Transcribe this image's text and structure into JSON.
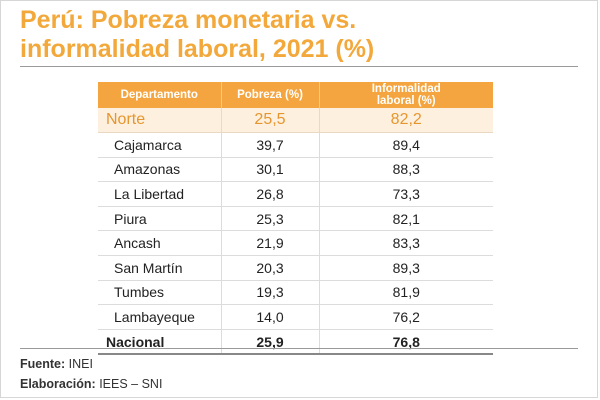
{
  "title_line1": "Perú: Pobreza monetaria vs.",
  "title_line2": "informalidad laboral, 2021 (%)",
  "chart_data": {
    "type": "table",
    "title": "Perú: Pobreza monetaria vs. informalidad laboral, 2021 (%)",
    "columns": [
      "Departamento",
      "Pobreza (%)",
      "Informalidad laboral (%)"
    ],
    "header": {
      "departamento": "Departamento",
      "pobreza": "Pobreza (%)",
      "informalidad_line1": "Informalidad",
      "informalidad_line2": "laboral (%)"
    },
    "region": {
      "name": "Norte",
      "pobreza": "25,5",
      "informalidad": "82,2"
    },
    "rows": [
      {
        "name": "Cajamarca",
        "pobreza": "39,7",
        "informalidad": "89,4"
      },
      {
        "name": "Amazonas",
        "pobreza": "30,1",
        "informalidad": "88,3"
      },
      {
        "name": "La Libertad",
        "pobreza": "26,8",
        "informalidad": "73,3"
      },
      {
        "name": "Piura",
        "pobreza": "25,3",
        "informalidad": "82,1"
      },
      {
        "name": "Ancash",
        "pobreza": "21,9",
        "informalidad": "83,3"
      },
      {
        "name": "San Martín",
        "pobreza": "20,3",
        "informalidad": "89,3"
      },
      {
        "name": "Tumbes",
        "pobreza": "19,3",
        "informalidad": "81,9"
      },
      {
        "name": "Lambayeque",
        "pobreza": "14,0",
        "informalidad": "76,2"
      }
    ],
    "total": {
      "name": "Nacional",
      "pobreza": "25,9",
      "informalidad": "76,8"
    }
  },
  "footer": {
    "fuente_label": "Fuente:",
    "fuente_value": "INEI",
    "elaboracion_label": "Elaboración:",
    "elaboracion_value": "IEES – SNI"
  },
  "colors": {
    "accent": "#f2a83a",
    "header_bg": "#f4a53f",
    "region_bg": "#fdf0de",
    "region_text": "#e6962f"
  }
}
